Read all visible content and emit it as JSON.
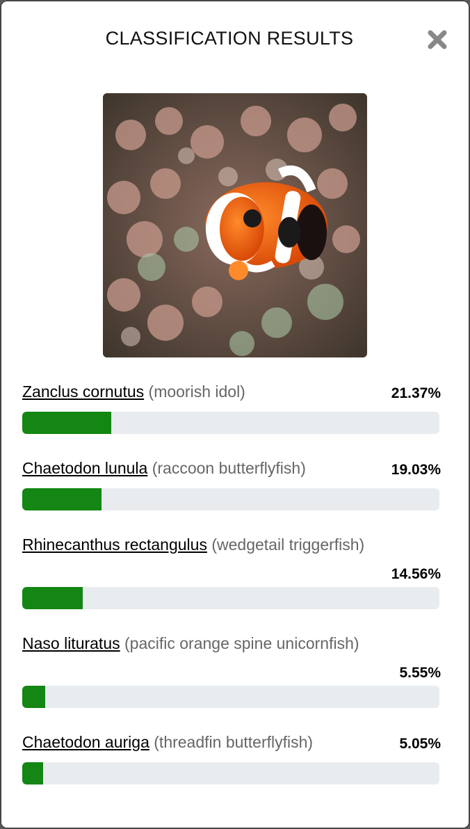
{
  "modal": {
    "title": "CLASSIFICATION RESULTS",
    "close_icon": "close-x-icon"
  },
  "image": {
    "subject": "clownfish in anemone"
  },
  "colors": {
    "bar_fill": "#138613",
    "bar_track": "#e9ecef",
    "common_name": "#666666"
  },
  "results": [
    {
      "scientific": "Zanclus cornutus",
      "common": "(moorish idol)",
      "percent": "21.37%",
      "value": 21.37
    },
    {
      "scientific": "Chaetodon lunula",
      "common": "(raccoon butterflyfish)",
      "percent": "19.03%",
      "value": 19.03
    },
    {
      "scientific": "Rhinecanthus rectangulus",
      "common": "(wedgetail triggerfish)",
      "percent": "14.56%",
      "value": 14.56
    },
    {
      "scientific": "Naso lituratus",
      "common": "(pacific orange spine unicornfish)",
      "percent": "5.55%",
      "value": 5.55
    },
    {
      "scientific": "Chaetodon auriga",
      "common": "(threadfin butterflyfish)",
      "percent": "5.05%",
      "value": 5.05
    }
  ]
}
